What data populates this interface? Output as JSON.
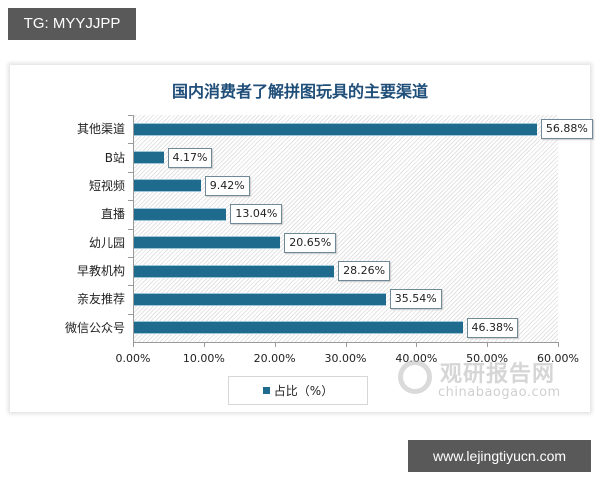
{
  "overlays": {
    "top_tag": "TG: MYYJJPP",
    "bottom_tag": "www.lejingtiyucn.com"
  },
  "watermark": {
    "logo_icon": "chinabaogao-swirl-icon",
    "name_cn": "观研报告网",
    "name_en": "chinabaogao.com"
  },
  "chart_data": {
    "type": "bar",
    "orientation": "horizontal",
    "title": "国内消费者了解拼图玩具的主要渠道",
    "categories": [
      "其他渠道",
      "B站",
      "短视频",
      "直播",
      "幼儿园",
      "早教机构",
      "亲友推荐",
      "微信公众号"
    ],
    "values": [
      56.88,
      4.17,
      9.42,
      13.04,
      20.65,
      28.26,
      35.54,
      46.38
    ],
    "value_labels": [
      "56.88%",
      "4.17%",
      "9.42%",
      "13.04%",
      "20.65%",
      "28.26%",
      "35.54%",
      "46.38%"
    ],
    "series": [
      {
        "name": "占比（%）",
        "color": "#1f6b8e",
        "values": [
          56.88,
          4.17,
          9.42,
          13.04,
          20.65,
          28.26,
          35.54,
          46.38
        ]
      }
    ],
    "xlabel": "",
    "ylabel": "",
    "xlim": [
      0,
      60
    ],
    "x_ticks": [
      "0.00%",
      "10.00%",
      "20.00%",
      "30.00%",
      "40.00%",
      "50.00%",
      "60.00%"
    ],
    "legend": {
      "position": "bottom",
      "entries": [
        "占比（%）"
      ]
    },
    "grid": false,
    "background": "diagonal-hatch"
  }
}
